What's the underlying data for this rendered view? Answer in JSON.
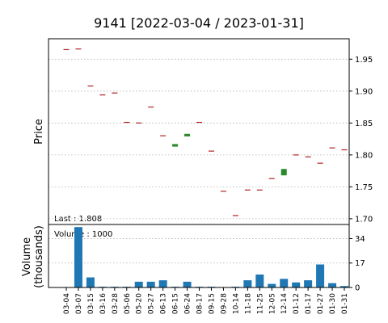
{
  "chart_data": {
    "type": "candlestick",
    "title": "9141   [2022-03-04 / 2023-01-31]",
    "ylabel": "Price",
    "annotation": "Last : 1.808",
    "categories": [
      "03-04",
      "03-07",
      "03-15",
      "03-16",
      "03-28",
      "05-06",
      "05-20",
      "05-27",
      "06-13",
      "06-15",
      "06-24",
      "08-17",
      "09-15",
      "09-28",
      "10-14",
      "11-18",
      "11-25",
      "12-05",
      "12-14",
      "01-12",
      "01-17",
      "01-27",
      "01-30",
      "01-31"
    ],
    "open": [
      1.965,
      1.966,
      1.908,
      1.894,
      1.897,
      1.851,
      1.85,
      1.875,
      1.83,
      1.813,
      1.829,
      1.851,
      1.806,
      1.743,
      1.705,
      1.745,
      1.745,
      1.763,
      1.768,
      1.8,
      1.797,
      1.787,
      1.811,
      1.808
    ],
    "close": [
      1.965,
      1.966,
      1.908,
      1.894,
      1.897,
      1.851,
      1.85,
      1.875,
      1.83,
      1.817,
      1.833,
      1.851,
      1.806,
      1.743,
      1.705,
      1.745,
      1.745,
      1.763,
      1.778,
      1.8,
      1.797,
      1.787,
      1.811,
      1.808
    ],
    "up_color": "#2a8a2a",
    "down_color": "#b22222",
    "ylim": [
      1.691,
      1.982
    ],
    "yticks": [
      {
        "value": 1.7,
        "label": "1.70"
      },
      1.75,
      {
        "value": 1.8,
        "label": "1.80"
      },
      1.85,
      {
        "value": 1.9,
        "label": "1.90"
      },
      1.95
    ],
    "grid": true,
    "volume": {
      "ylabel": [
        "Volume",
        "(thousands)"
      ],
      "annotation": "Volume : 1000",
      "values": [
        0,
        42,
        7,
        0.5,
        0.5,
        0.5,
        4,
        4,
        5,
        0.5,
        4,
        0.5,
        0.5,
        0,
        0.5,
        5,
        9,
        2.5,
        6,
        3.5,
        5,
        16,
        3,
        1
      ],
      "color": "#1f77b4",
      "ylim": [
        0,
        43.8
      ],
      "yticks": [
        0,
        17,
        34
      ]
    }
  }
}
